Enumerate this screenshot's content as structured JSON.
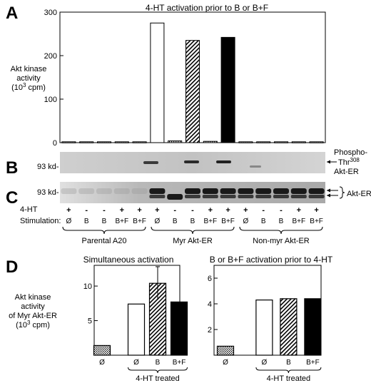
{
  "figure": {
    "panels": {
      "A": "A",
      "B": "B",
      "C": "C",
      "D": "D"
    },
    "blot_b": {
      "marker": "93 kd-",
      "label_line1": "Phospho-",
      "label_line2_pre": "Thr",
      "label_line2_sup": "308",
      "label_line3": "Akt-ER"
    },
    "blot_c": {
      "marker": "93 kd-",
      "label": "Akt-ER"
    },
    "conditions": {
      "row_4ht_label": "4-HT",
      "row_stim_label": "Stimulation:",
      "plus_minus": [
        "+",
        "-",
        "-",
        "+",
        "+",
        "+",
        "-",
        "-",
        "+",
        "+",
        "+",
        "-",
        "-",
        "+",
        "+"
      ],
      "stimulation": [
        "Ø",
        "B",
        "B",
        "B+F",
        "B+F",
        "Ø",
        "B",
        "B",
        "B+F",
        "B+F",
        "Ø",
        "B",
        "B",
        "B+F",
        "B+F"
      ],
      "groups": [
        "Parental A20",
        "Myr Akt-ER",
        "Non-myr Akt-ER"
      ]
    }
  },
  "chart_data": [
    {
      "type": "bar",
      "title": "4-HT activation prior to B or B+F",
      "ylabel_line1": "Akt kinase",
      "ylabel_line2": "activity",
      "ylabel_line3_pre": "(10",
      "ylabel_line3_sup": "3",
      "ylabel_line3_post": " cpm)",
      "ylim": [
        0,
        300
      ],
      "yticks": [
        "0",
        "100",
        "200",
        "300"
      ],
      "values": [
        2,
        2,
        2,
        2,
        2,
        275,
        4,
        235,
        3,
        242,
        2,
        2,
        2,
        2,
        2
      ],
      "fills": [
        "dot",
        "dot",
        "dot",
        "dot",
        "dot",
        "white",
        "dot",
        "hatch",
        "dot",
        "black",
        "dot",
        "dot",
        "dot",
        "dot",
        "dot"
      ]
    },
    {
      "type": "bar",
      "title": "Simultaneous activation",
      "ylabel_line1": "Akt kinase",
      "ylabel_line2": "activity",
      "ylabel_line3": "of Myr Akt-ER",
      "ylabel_line4_pre": "(10",
      "ylabel_line4_sup": "3",
      "ylabel_line4_post": " cpm)",
      "ylim": [
        0,
        13
      ],
      "yticks": [
        "5",
        "10"
      ],
      "categories": [
        "Ø",
        "Ø",
        "B",
        "B+F"
      ],
      "values": [
        1.4,
        7.4,
        10.4,
        7.7
      ],
      "error": [
        0,
        0,
        2.4,
        0
      ],
      "fills": [
        "dot",
        "white",
        "hatch",
        "black"
      ],
      "bracket_label": "4-HT treated"
    },
    {
      "type": "bar",
      "title": "B or B+F activation prior to 4-HT",
      "ylim": [
        0,
        7
      ],
      "yticks": [
        "2",
        "4",
        "6"
      ],
      "categories": [
        "Ø",
        "Ø",
        "B",
        "B+F"
      ],
      "values": [
        0.7,
        4.3,
        4.4,
        4.4
      ],
      "fills": [
        "dot",
        "white",
        "hatch",
        "black"
      ],
      "bracket_label": "4-HT treated"
    }
  ]
}
